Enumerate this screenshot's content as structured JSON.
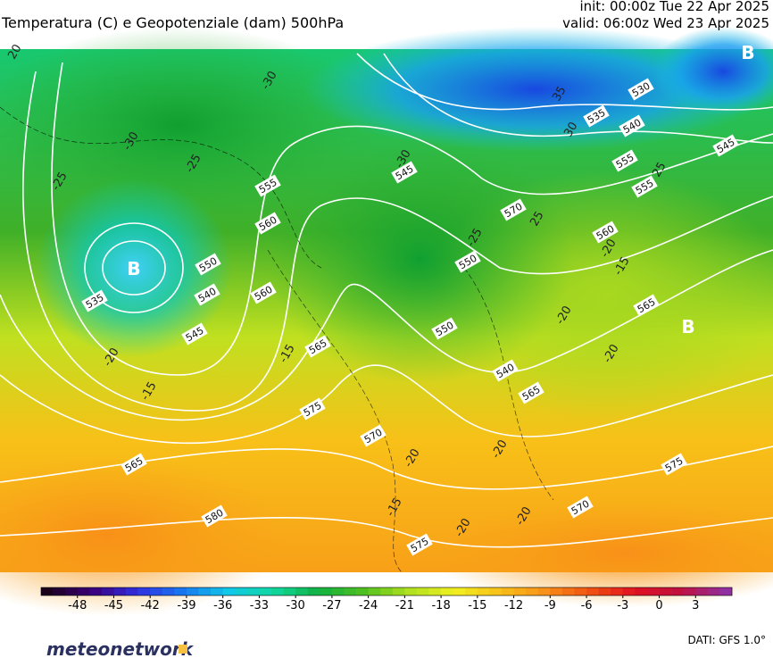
{
  "header": {
    "title": "Temperatura (C) e Geopotenziale (dam) 500hPa",
    "init": "init: 00:00z Tue 22 Apr 2025",
    "valid": "valid: 06:00z Wed 23 Apr 2025"
  },
  "map": {
    "lows": [
      "B",
      "B",
      "B"
    ],
    "height_labels": [
      530,
      535,
      540,
      545,
      555,
      560,
      565,
      570,
      575,
      580,
      535,
      540,
      545,
      550,
      555,
      560,
      565,
      575,
      570,
      550,
      545,
      540,
      550,
      555,
      560,
      565,
      565,
      570,
      575
    ],
    "temp_labels": [
      -30,
      -30,
      -25,
      -30,
      -25,
      -15,
      -20,
      -15,
      -20,
      -25,
      -15,
      -20,
      -20,
      -20,
      -20,
      -15,
      35,
      30,
      25,
      25,
      20,
      -20,
      -20
    ]
  },
  "colorbar": {
    "lim": [
      -51,
      6
    ],
    "ticks": [
      -48,
      -45,
      -42,
      -39,
      -36,
      -33,
      -30,
      -27,
      -24,
      -21,
      -18,
      -15,
      -12,
      -9,
      -6,
      -3,
      0,
      3
    ],
    "color_stops": [
      "#1a001a",
      "#3a007a",
      "#3030e0",
      "#1878f0",
      "#10c8e8",
      "#10d8a0",
      "#10b040",
      "#50c020",
      "#b0e020",
      "#f0f020",
      "#f8c018",
      "#f89018",
      "#f05010",
      "#e01020",
      "#c01040",
      "#9030a0"
    ]
  },
  "footer": {
    "logo": "meteonetwork",
    "source": "DATI: GFS 1.0°"
  }
}
